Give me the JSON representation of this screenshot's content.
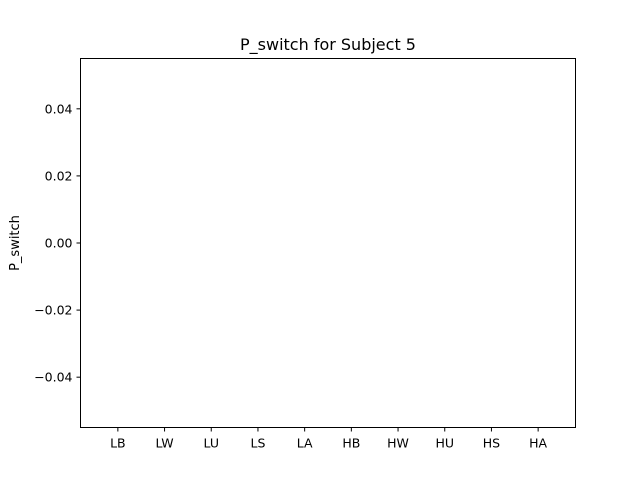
{
  "chart_data": {
    "type": "bar",
    "title": "P_switch for Subject 5",
    "xlabel": "",
    "ylabel": "P_switch",
    "categories": [
      "LB",
      "LW",
      "LU",
      "LS",
      "LA",
      "HB",
      "HW",
      "HU",
      "HS",
      "HA"
    ],
    "values": [
      0,
      0,
      0,
      0,
      0,
      0,
      0,
      0,
      0,
      0
    ],
    "ylim": [
      -0.055,
      0.055
    ],
    "yticks": [
      -0.04,
      -0.02,
      0.0,
      0.02,
      0.04
    ],
    "ytick_labels": [
      "−0.04",
      "−0.02",
      "0.00",
      "0.02",
      "0.04"
    ],
    "grid": false,
    "colors": {
      "bar": "#1f77b4",
      "axis": "#000000",
      "background": "#ffffff"
    }
  }
}
